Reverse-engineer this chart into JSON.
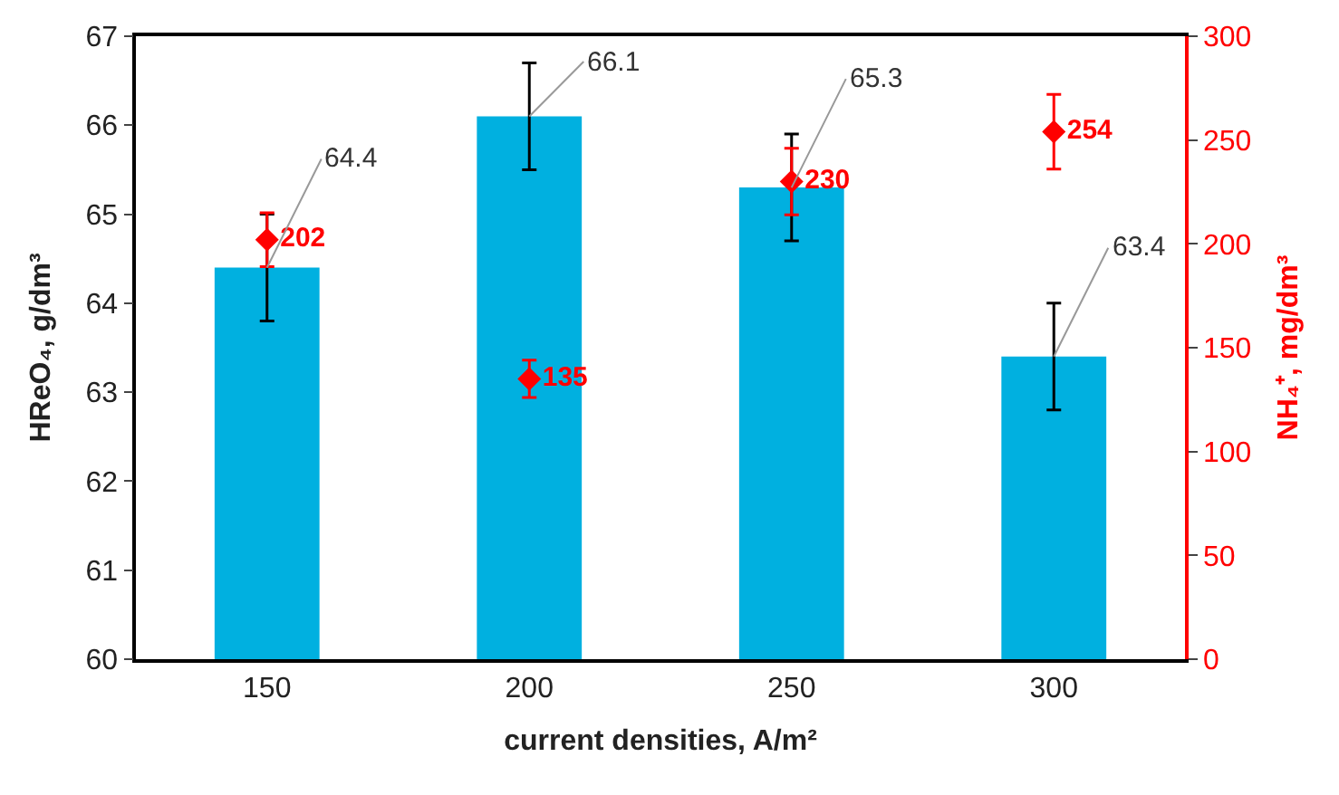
{
  "chart_data": {
    "type": "bar",
    "xlabel": "current densities, A/m²",
    "ylabel": "HReO₄, g/dm³",
    "y2label": "NH₄⁺, mg/dm³",
    "categories": [
      "150",
      "200",
      "250",
      "300"
    ],
    "series": [
      {
        "color": "#00b0e0",
        "values": [
          64.4,
          66.1,
          65.3,
          63.4
        ],
        "errors": [
          0.6,
          0.6,
          0.6,
          0.6
        ],
        "value_labels": [
          "64.4",
          "66.1",
          "65.3",
          "63.4"
        ]
      },
      {
        "type": "scatter",
        "axis": "y2",
        "color": "#ff0000",
        "marker": "diamond",
        "values": [
          202,
          135,
          230,
          254
        ],
        "errors": [
          13,
          9,
          16,
          18
        ],
        "value_labels": [
          "202",
          "135",
          "230",
          "254"
        ]
      }
    ],
    "ylim": [
      60,
      67
    ],
    "yticks": [
      60,
      61,
      62,
      63,
      64,
      65,
      66,
      67
    ],
    "y2lim": [
      0,
      300
    ],
    "y2ticks": [
      0,
      50,
      100,
      150,
      200,
      250,
      300
    ]
  }
}
